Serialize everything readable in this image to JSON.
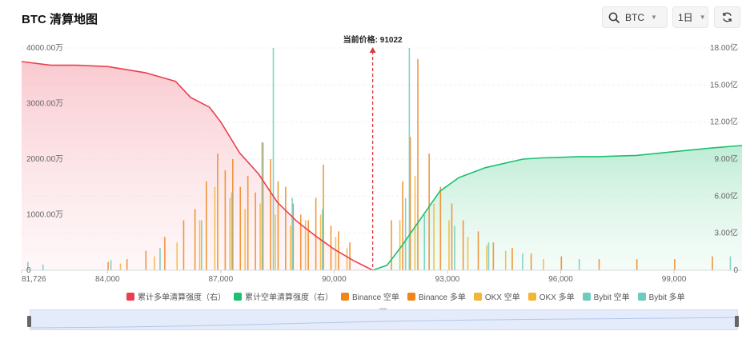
{
  "header": {
    "title": "BTC 清算地图",
    "symbol": "BTC",
    "period": "1日"
  },
  "icons": {
    "search": "search-icon",
    "symbol_caret": "chevron-down-icon",
    "period_caret": "chevron-down-icon",
    "refresh": "refresh-icon"
  },
  "colors": {
    "long_cumulative": "#e9404f",
    "short_cumulative": "#1dbf70",
    "binance": "#f0851b",
    "okx": "#f2b535",
    "bybit": "#6ccbbd",
    "price_line": "#d93a43"
  },
  "chart_data": {
    "type": "bar",
    "current_price_label": "当前价格: 91022",
    "current_price": 91022,
    "x_range": [
      81726,
      100800
    ],
    "x_ticks": [
      81726,
      84000,
      87000,
      90000,
      93000,
      96000,
      99000
    ],
    "x_tick_labels": [
      "81,726",
      "84,000",
      "87,000",
      "90,000",
      "93,000",
      "96,000",
      "99,000"
    ],
    "y_left_range": [
      0,
      4000
    ],
    "y_left_unit": "万",
    "y_left_ticks": [
      "0",
      "1000.00万",
      "2000.00万",
      "3000.00万",
      "4000.00万"
    ],
    "y_right_range": [
      0,
      18
    ],
    "y_right_unit": "亿",
    "y_right_ticks": [
      "0",
      "3.00亿",
      "6.00亿",
      "9.00亿",
      "12.00亿",
      "15.00亿",
      "18.00亿"
    ],
    "grid": true,
    "legend_position": "bottom",
    "legend": [
      {
        "label": "累计多单清算强度（右）",
        "color": "#e9404f"
      },
      {
        "label": "累计空单清算强度（右）",
        "color": "#1dbf70"
      },
      {
        "label": "Binance 空单",
        "color": "#f0851b"
      },
      {
        "label": "Binance 多单",
        "color": "#f0851b"
      },
      {
        "label": "OKX 空单",
        "color": "#f2b535"
      },
      {
        "label": "OKX 多单",
        "color": "#f2b535"
      },
      {
        "label": "Bybit 空单",
        "color": "#6ccbbd"
      },
      {
        "label": "Bybit 多单",
        "color": "#6ccbbd"
      }
    ],
    "long_cumulative": {
      "name": "累计多单清算强度（右）",
      "x": [
        81726,
        82500,
        83200,
        84000,
        85000,
        85800,
        86200,
        86700,
        87000,
        87500,
        88000,
        88500,
        89000,
        89500,
        90000,
        90500,
        91022
      ],
      "y": [
        16.9,
        16.6,
        16.6,
        16.5,
        16.0,
        15.3,
        14.0,
        13.2,
        12.0,
        9.5,
        7.8,
        5.5,
        4.0,
        2.8,
        1.7,
        0.8,
        0
      ]
    },
    "short_cumulative": {
      "name": "累计空单清算强度（右）",
      "x": [
        91022,
        91400,
        91800,
        92300,
        92800,
        93300,
        94000,
        95000,
        95500,
        96500,
        97000,
        98000,
        99000,
        100000,
        100800
      ],
      "y": [
        0,
        0.4,
        2.0,
        4.2,
        6.4,
        7.5,
        8.3,
        9.0,
        9.1,
        9.2,
        9.2,
        9.3,
        9.6,
        9.9,
        10.1
      ]
    },
    "bars": {
      "binance": {
        "x": [
          84000,
          84500,
          85000,
          85500,
          86000,
          86300,
          86600,
          86900,
          87100,
          87300,
          87500,
          87700,
          87900,
          88100,
          88300,
          88500,
          88700,
          88900,
          89100,
          89300,
          89500,
          89700,
          89900,
          90100,
          90400,
          91500,
          91800,
          92000,
          92200,
          92500,
          92800,
          93100,
          93400,
          93800,
          94200,
          94700,
          95200,
          96000,
          97000,
          98000,
          99000,
          100000
        ],
        "values": [
          150,
          200,
          350,
          600,
          900,
          1100,
          1600,
          2100,
          1800,
          2000,
          1500,
          1700,
          1400,
          2300,
          2000,
          1600,
          1500,
          1200,
          1000,
          900,
          1300,
          1900,
          800,
          700,
          500,
          900,
          1600,
          2400,
          3800,
          2100,
          1500,
          1200,
          900,
          700,
          500,
          400,
          300,
          250,
          200,
          200,
          200,
          250
        ]
      },
      "okx": {
        "x": [
          84300,
          85200,
          85800,
          86400,
          86800,
          87200,
          87600,
          88000,
          88400,
          88800,
          89200,
          89600,
          90000,
          90300,
          91700,
          92100,
          92600,
          93000,
          93500,
          94000,
          94500,
          95500
        ],
        "values": [
          120,
          250,
          500,
          900,
          1500,
          1300,
          1100,
          1200,
          1000,
          800,
          900,
          1000,
          600,
          400,
          900,
          1700,
          1200,
          900,
          600,
          450,
          350,
          200
        ]
      },
      "bybit": {
        "x": [
          81900,
          82300,
          84100,
          85400,
          86500,
          87300,
          88100,
          88400,
          88900,
          89700,
          91900,
          92000,
          92400,
          93200,
          94100,
          95000,
          96500,
          100500
        ],
        "values": [
          150,
          100,
          180,
          400,
          900,
          1400,
          2300,
          4000,
          1300,
          1100,
          1300,
          4000,
          1000,
          800,
          500,
          300,
          200,
          250
        ]
      }
    },
    "x_span": [
      81726,
      100800
    ]
  }
}
